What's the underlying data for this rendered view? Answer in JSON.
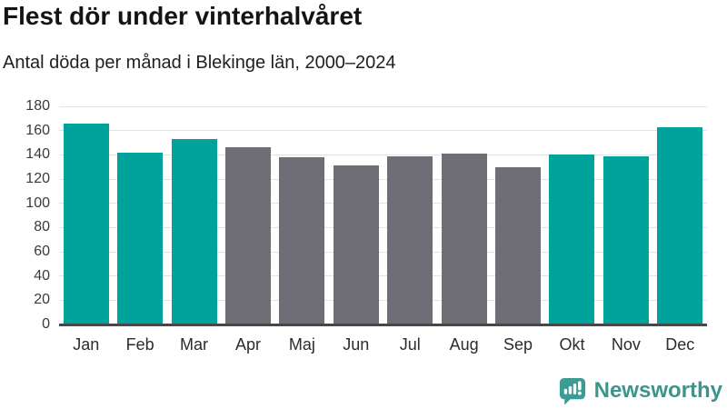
{
  "header": {
    "title": "Flest dör under vinterhalvåret",
    "subtitle": "Antal döda per månad i Blekinge län, 2000–2024"
  },
  "chart_data": {
    "type": "bar",
    "title": "Flest dör under vinterhalvåret",
    "subtitle": "Antal döda per månad i Blekinge län, 2000–2024",
    "categories": [
      "Jan",
      "Feb",
      "Mar",
      "Apr",
      "Maj",
      "Jun",
      "Jul",
      "Aug",
      "Sep",
      "Okt",
      "Nov",
      "Dec"
    ],
    "values": [
      166,
      142,
      153,
      146,
      138,
      131,
      139,
      141,
      130,
      140,
      139,
      163
    ],
    "highlighted": [
      true,
      true,
      true,
      false,
      false,
      false,
      false,
      false,
      false,
      true,
      true,
      true
    ],
    "highlight_color": "#00a39b",
    "base_color": "#6f6e77",
    "xlabel": "",
    "ylabel": "",
    "ylim": [
      0,
      180
    ],
    "yticks": [
      0,
      20,
      40,
      60,
      80,
      100,
      120,
      140,
      160,
      180
    ],
    "grid": true,
    "gridline_color": "#e2e2e2",
    "axis_color": "#474747",
    "legend": false
  },
  "footer": {
    "brand": "Newsworthy",
    "logo_icon": "bar-chart-speech-bubble-icon",
    "logo_color": "#3e9b93",
    "brand_color": "#3e948d"
  }
}
